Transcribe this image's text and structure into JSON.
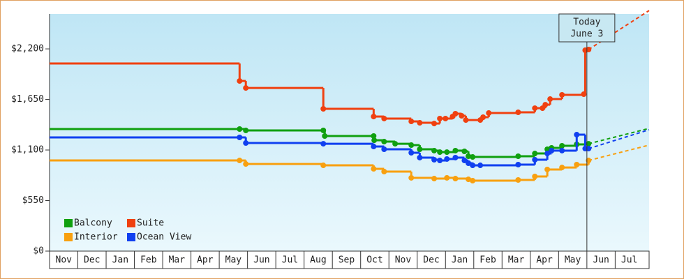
{
  "chart_data": {
    "type": "step-line",
    "xlim": [
      0,
      21.2
    ],
    "ylim": [
      0,
      2580
    ],
    "yticks": [
      {
        "value": 0,
        "label": "$0"
      },
      {
        "value": 550,
        "label": "$550"
      },
      {
        "value": 1100,
        "label": "$1,100"
      },
      {
        "value": 1650,
        "label": "$1,650"
      },
      {
        "value": 2200,
        "label": "$2,200"
      }
    ],
    "xticks": [
      {
        "value": 0.5,
        "label": "Nov"
      },
      {
        "value": 1.5,
        "label": "Dec"
      },
      {
        "value": 2.5,
        "label": "Jan"
      },
      {
        "value": 3.5,
        "label": "Feb"
      },
      {
        "value": 4.5,
        "label": "Mar"
      },
      {
        "value": 5.5,
        "label": "Apr"
      },
      {
        "value": 6.5,
        "label": "May"
      },
      {
        "value": 7.5,
        "label": "Jun"
      },
      {
        "value": 8.5,
        "label": "Jul"
      },
      {
        "value": 9.5,
        "label": "Aug"
      },
      {
        "value": 10.5,
        "label": "Sep"
      },
      {
        "value": 11.5,
        "label": "Oct"
      },
      {
        "value": 12.5,
        "label": "Nov"
      },
      {
        "value": 13.5,
        "label": "Dec"
      },
      {
        "value": 14.5,
        "label": "Jan"
      },
      {
        "value": 15.5,
        "label": "Feb"
      },
      {
        "value": 16.5,
        "label": "Mar"
      },
      {
        "value": 17.5,
        "label": "Apr"
      },
      {
        "value": 18.5,
        "label": "May"
      },
      {
        "value": 19.5,
        "label": "Jun"
      },
      {
        "value": 20.5,
        "label": "Jul"
      }
    ],
    "annotation": {
      "x": 19.0,
      "lines": [
        "Today",
        "June 3"
      ]
    },
    "legend": "bottom-left",
    "series": [
      {
        "name": "Balcony",
        "color": "#10a010",
        "x": [
          0,
          6.72,
          6.94,
          9.68,
          9.73,
          11.46,
          11.48,
          11.83,
          12.22,
          12.79,
          13.09,
          13.6,
          13.8,
          14.05,
          14.35,
          14.67,
          14.81,
          14.96,
          16.57,
          17.16,
          17.6,
          17.75,
          18.12,
          18.64,
          19.06
        ],
        "values": [
          1328,
          1328,
          1313,
          1313,
          1252,
          1252,
          1206,
          1191,
          1168,
          1153,
          1108,
          1093,
          1077,
          1077,
          1093,
          1085,
          1032,
          1024,
          1032,
          1062,
          1108,
          1123,
          1146,
          1161,
          1168
        ],
        "forecast_x": 21.2,
        "forecast_value": 1335
      },
      {
        "name": "Suite",
        "color": "#f04010",
        "x": [
          0,
          6.72,
          6.94,
          9.68,
          11.46,
          11.83,
          12.79,
          13.09,
          13.6,
          13.8,
          14.0,
          14.25,
          14.35,
          14.57,
          14.72,
          15.23,
          15.33,
          15.53,
          16.57,
          17.16,
          17.43,
          17.53,
          17.7,
          18.12,
          18.89,
          18.94,
          19.06
        ],
        "values": [
          2041,
          1851,
          1775,
          1548,
          1464,
          1442,
          1411,
          1396,
          1388,
          1442,
          1442,
          1464,
          1495,
          1472,
          1426,
          1426,
          1457,
          1502,
          1510,
          1555,
          1555,
          1593,
          1654,
          1700,
          1707,
          2185,
          2193
        ],
        "forecast_x": 21.2,
        "forecast_value": 2617
      },
      {
        "name": "Interior",
        "color": "#f8a010",
        "x": [
          0,
          6.72,
          6.94,
          9.68,
          11.46,
          11.83,
          12.79,
          13.6,
          14.05,
          14.35,
          14.81,
          14.96,
          16.57,
          17.16,
          17.6,
          18.12,
          18.64,
          19.06
        ],
        "values": [
          986,
          986,
          948,
          933,
          895,
          865,
          797,
          789,
          797,
          789,
          781,
          766,
          774,
          812,
          888,
          910,
          941,
          986
        ],
        "forecast_x": 21.2,
        "forecast_value": 1153
      },
      {
        "name": "Ocean View",
        "color": "#1040f0",
        "x": [
          0,
          6.72,
          6.94,
          9.68,
          11.46,
          11.83,
          12.79,
          13.09,
          13.6,
          13.8,
          14.05,
          14.35,
          14.67,
          14.81,
          14.96,
          15.23,
          16.57,
          17.16,
          17.6,
          17.75,
          18.12,
          18.64,
          18.94,
          19.06
        ],
        "values": [
          1237,
          1237,
          1176,
          1168,
          1138,
          1108,
          1070,
          1017,
          994,
          986,
          1002,
          1017,
          986,
          956,
          933,
          933,
          941,
          994,
          1062,
          1093,
          1093,
          1267,
          1115,
          1115
        ],
        "forecast_x": 21.2,
        "forecast_value": 1320
      }
    ]
  }
}
